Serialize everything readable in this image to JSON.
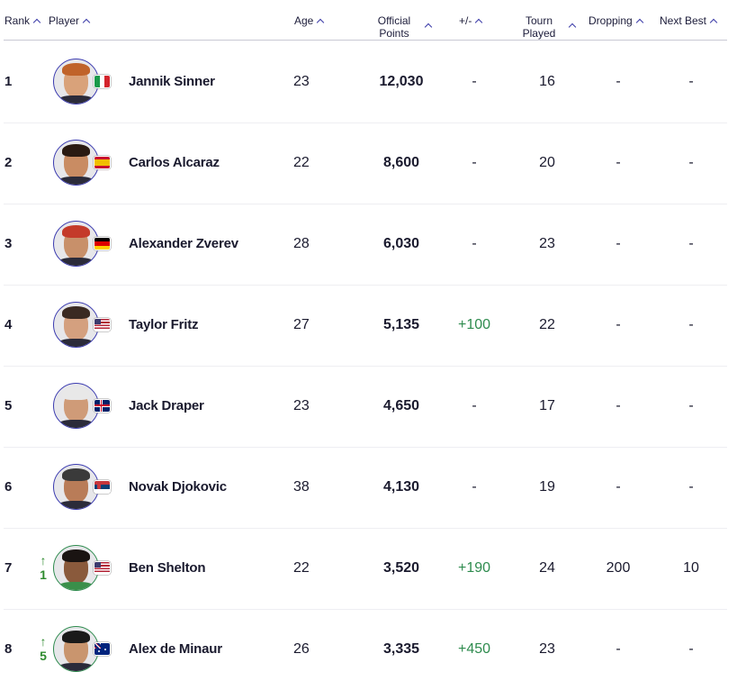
{
  "columns": {
    "rank": "Rank",
    "player": "Player",
    "age": "Age",
    "points_line1": "Official",
    "points_line2": "Points",
    "delta": "+/-",
    "tourn_line1": "Tourn",
    "tourn_line2": "Played",
    "dropping": "Dropping",
    "next_best": "Next Best"
  },
  "colors": {
    "accent": "#3b3bb0",
    "positive": "#2e8b4e"
  },
  "rows": [
    {
      "rank": "1",
      "move": "",
      "name": "Jannik Sinner",
      "flag": "italy-flag",
      "age": "23",
      "points": "12,030",
      "delta": "-",
      "played": "16",
      "dropping": "-",
      "next_best": "-"
    },
    {
      "rank": "2",
      "move": "",
      "name": "Carlos Alcaraz",
      "flag": "spain-flag",
      "age": "22",
      "points": "8,600",
      "delta": "-",
      "played": "20",
      "dropping": "-",
      "next_best": "-"
    },
    {
      "rank": "3",
      "move": "",
      "name": "Alexander Zverev",
      "flag": "germany-flag",
      "age": "28",
      "points": "6,030",
      "delta": "-",
      "played": "23",
      "dropping": "-",
      "next_best": "-"
    },
    {
      "rank": "4",
      "move": "",
      "name": "Taylor Fritz",
      "flag": "usa-flag",
      "age": "27",
      "points": "5,135",
      "delta": "+100",
      "played": "22",
      "dropping": "-",
      "next_best": "-"
    },
    {
      "rank": "5",
      "move": "",
      "name": "Jack Draper",
      "flag": "uk-flag",
      "age": "23",
      "points": "4,650",
      "delta": "-",
      "played": "17",
      "dropping": "-",
      "next_best": "-"
    },
    {
      "rank": "6",
      "move": "",
      "name": "Novak Djokovic",
      "flag": "serbia-flag",
      "age": "38",
      "points": "4,130",
      "delta": "-",
      "played": "19",
      "dropping": "-",
      "next_best": "-"
    },
    {
      "rank": "7",
      "move": "1",
      "name": "Ben Shelton",
      "flag": "usa-flag",
      "age": "22",
      "points": "3,520",
      "delta": "+190",
      "played": "24",
      "dropping": "200",
      "next_best": "10"
    },
    {
      "rank": "8",
      "move": "5",
      "name": "Alex de Minaur",
      "flag": "australia-flag",
      "age": "26",
      "points": "3,335",
      "delta": "+450",
      "played": "23",
      "dropping": "-",
      "next_best": "-"
    }
  ]
}
